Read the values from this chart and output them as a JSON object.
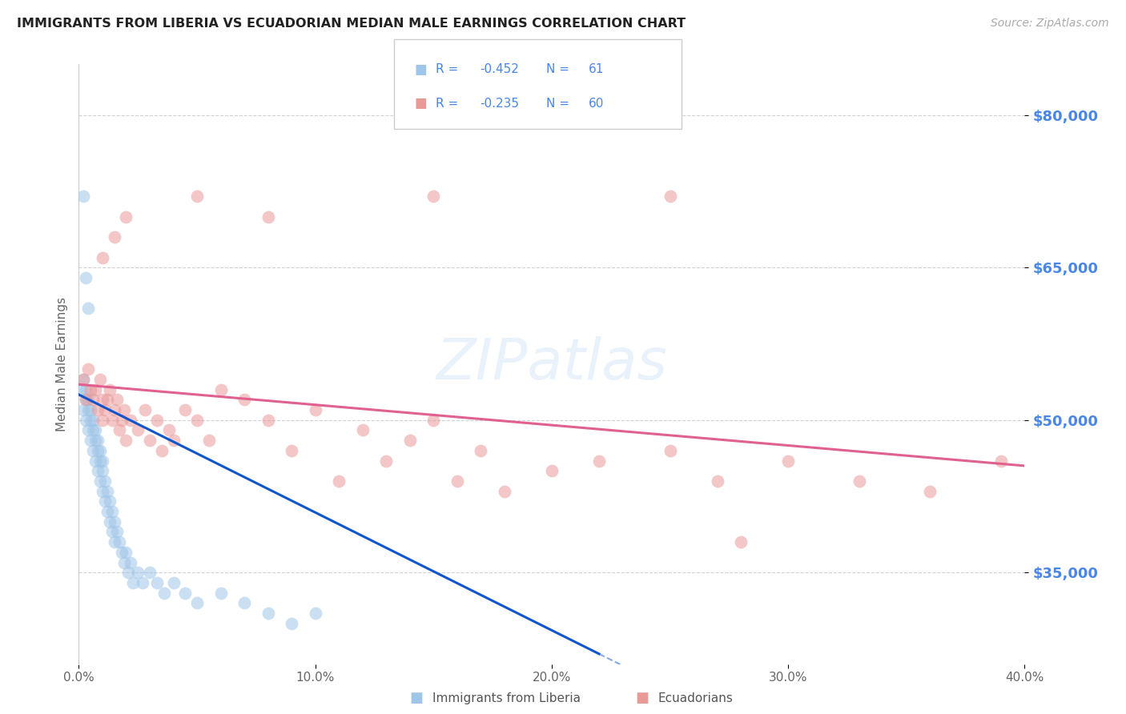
{
  "title": "IMMIGRANTS FROM LIBERIA VS ECUADORIAN MEDIAN MALE EARNINGS CORRELATION CHART",
  "source": "Source: ZipAtlas.com",
  "ylabel": "Median Male Earnings",
  "xlim": [
    0.0,
    0.4
  ],
  "ylim": [
    26000,
    85000
  ],
  "yticks": [
    35000,
    50000,
    65000,
    80000
  ],
  "ytick_labels": [
    "$35,000",
    "$50,000",
    "$65,000",
    "$80,000"
  ],
  "xtick_labels": [
    "0.0%",
    "10.0%",
    "20.0%",
    "30.0%",
    "40.0%"
  ],
  "xticks": [
    0.0,
    0.1,
    0.2,
    0.3,
    0.4
  ],
  "blue_R": -0.452,
  "blue_N": 61,
  "pink_R": -0.235,
  "pink_N": 60,
  "blue_color": "#9fc5e8",
  "pink_color": "#ea9999",
  "blue_line_color": "#1155cc",
  "pink_line_color": "#e06090",
  "background_color": "#ffffff",
  "title_color": "#222222",
  "source_color": "#aaaaaa",
  "ytick_color": "#4a86e8",
  "legend_text_color": "#4a86e8",
  "legend_label_blue": "Immigrants from Liberia",
  "legend_label_pink": "Ecuadorians",
  "blue_x": [
    0.001,
    0.002,
    0.002,
    0.003,
    0.003,
    0.003,
    0.004,
    0.004,
    0.004,
    0.005,
    0.005,
    0.005,
    0.006,
    0.006,
    0.006,
    0.007,
    0.007,
    0.007,
    0.008,
    0.008,
    0.008,
    0.009,
    0.009,
    0.009,
    0.01,
    0.01,
    0.01,
    0.011,
    0.011,
    0.012,
    0.012,
    0.013,
    0.013,
    0.014,
    0.014,
    0.015,
    0.015,
    0.016,
    0.017,
    0.018,
    0.019,
    0.02,
    0.021,
    0.022,
    0.023,
    0.025,
    0.027,
    0.03,
    0.033,
    0.036,
    0.04,
    0.045,
    0.05,
    0.06,
    0.07,
    0.08,
    0.09,
    0.1,
    0.002,
    0.003,
    0.004
  ],
  "blue_y": [
    53000,
    51000,
    54000,
    52000,
    50000,
    53000,
    51000,
    49000,
    52000,
    50000,
    48000,
    51000,
    49000,
    47000,
    50000,
    48000,
    46000,
    49000,
    47000,
    45000,
    48000,
    46000,
    44000,
    47000,
    45000,
    43000,
    46000,
    44000,
    42000,
    43000,
    41000,
    42000,
    40000,
    41000,
    39000,
    40000,
    38000,
    39000,
    38000,
    37000,
    36000,
    37000,
    35000,
    36000,
    34000,
    35000,
    34000,
    35000,
    34000,
    33000,
    34000,
    33000,
    32000,
    33000,
    32000,
    31000,
    30000,
    31000,
    72000,
    64000,
    61000
  ],
  "pink_x": [
    0.002,
    0.003,
    0.004,
    0.005,
    0.006,
    0.007,
    0.008,
    0.009,
    0.01,
    0.01,
    0.011,
    0.012,
    0.013,
    0.014,
    0.015,
    0.016,
    0.017,
    0.018,
    0.019,
    0.02,
    0.022,
    0.025,
    0.028,
    0.03,
    0.033,
    0.035,
    0.038,
    0.04,
    0.045,
    0.05,
    0.055,
    0.06,
    0.07,
    0.08,
    0.09,
    0.1,
    0.11,
    0.12,
    0.13,
    0.14,
    0.15,
    0.16,
    0.17,
    0.18,
    0.2,
    0.22,
    0.25,
    0.27,
    0.3,
    0.33,
    0.36,
    0.39,
    0.01,
    0.015,
    0.02,
    0.05,
    0.08,
    0.15,
    0.25,
    0.28
  ],
  "pink_y": [
    54000,
    52000,
    55000,
    53000,
    52000,
    53000,
    51000,
    54000,
    52000,
    50000,
    51000,
    52000,
    53000,
    50000,
    51000,
    52000,
    49000,
    50000,
    51000,
    48000,
    50000,
    49000,
    51000,
    48000,
    50000,
    47000,
    49000,
    48000,
    51000,
    50000,
    48000,
    53000,
    52000,
    50000,
    47000,
    51000,
    44000,
    49000,
    46000,
    48000,
    50000,
    44000,
    47000,
    43000,
    45000,
    46000,
    47000,
    44000,
    46000,
    44000,
    43000,
    46000,
    66000,
    68000,
    70000,
    72000,
    70000,
    72000,
    72000,
    38000
  ],
  "blue_line_x": [
    0.0,
    0.22
  ],
  "blue_line_y": [
    52500,
    27000
  ],
  "pink_line_x": [
    0.0,
    0.4
  ],
  "pink_line_y": [
    53500,
    45500
  ]
}
